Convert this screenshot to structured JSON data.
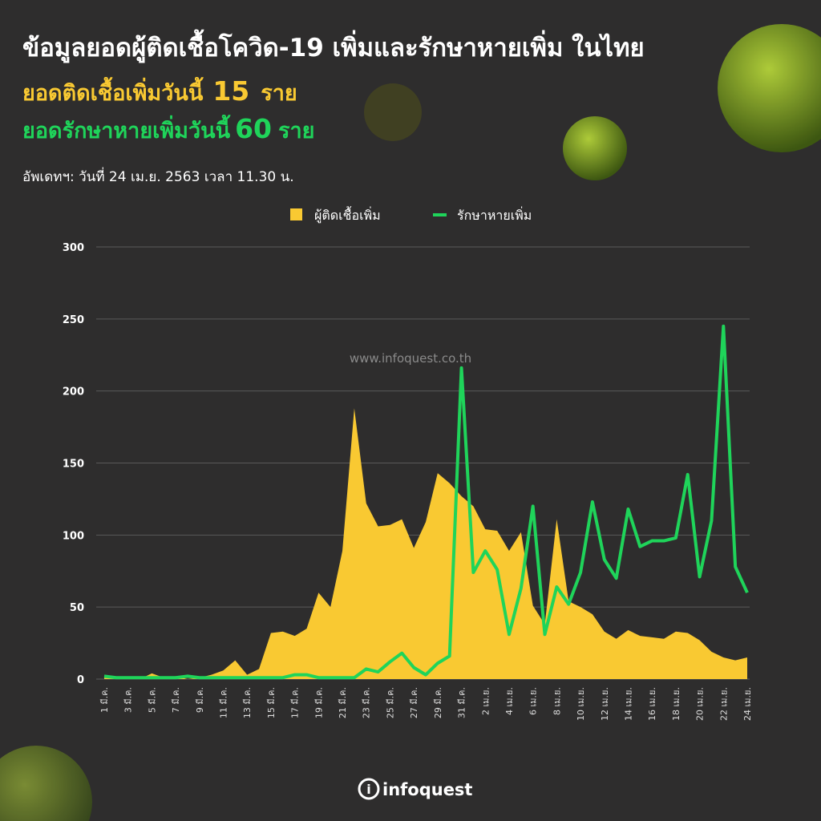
{
  "header": {
    "title": "ข้อมูลยอดผู้ติดเชื้อโควิด-19 เพิ่มและรักษาหายเพิ่ม ในไทย",
    "infected_label": "ยอดติดเชื้อเพิ่มวันนี้",
    "infected_today": 15,
    "infected_unit": "ราย",
    "recovered_label": "ยอดรักษาหายเพิ่มวันนี้",
    "recovered_today": 60,
    "recovered_unit": "ราย",
    "updated": "อัพเดทฯ: วันที่  24 เม.ย. 2563 เวลา 11.30 น.",
    "watermark": "www.infoquest.co.th",
    "logo": "infoquest"
  },
  "chart_data": {
    "type": "combo",
    "ylim": [
      0,
      300
    ],
    "yticks": [
      0,
      50,
      100,
      150,
      200,
      250,
      300
    ],
    "grid": true,
    "legend": "top",
    "categories": [
      "1 มี.ค.",
      null,
      "3 มี.ค.",
      null,
      "5 มี.ค.",
      null,
      "7 มี.ค.",
      null,
      "9 มี.ค.",
      null,
      "11 มี.ค.",
      null,
      "13 มี.ค.",
      null,
      "15 มี.ค.",
      null,
      "17 มี.ค.",
      null,
      "19 มี.ค.",
      null,
      "21 มี.ค.",
      null,
      "23 มี.ค.",
      null,
      "25 มี.ค.",
      null,
      "27 มี.ค.",
      null,
      "29 มี.ค.",
      null,
      "31 มี.ค.",
      null,
      "2 เม.ย.",
      null,
      "4 เม.ย.",
      null,
      "6 เม.ย.",
      null,
      "8 เม.ย.",
      null,
      "10 เม.ย.",
      null,
      "12 เม.ย.",
      null,
      "14 เม.ย.",
      null,
      "16 เม.ย.",
      null,
      "18 เม.ย.",
      null,
      "20 เม.ย.",
      null,
      "22 เม.ย.",
      null,
      "24 เม.ย."
    ],
    "series": [
      {
        "name": "ผู้ติดเชื้อเพิ่ม",
        "type": "area",
        "color": "#f9c932",
        "values": [
          1,
          1,
          1,
          0,
          4,
          1,
          2,
          0,
          1,
          3,
          6,
          13,
          3,
          7,
          32,
          33,
          30,
          35,
          60,
          50,
          89,
          188,
          122,
          106,
          107,
          111,
          91,
          109,
          143,
          136,
          127,
          120,
          104,
          103,
          89,
          102,
          51,
          38,
          111,
          54,
          50,
          45,
          33,
          28,
          34,
          30,
          29,
          28,
          33,
          32,
          27,
          19,
          15,
          13,
          15
        ]
      },
      {
        "name": "รักษาหายเพิ่ม",
        "type": "line",
        "color": "#1fd45a",
        "values": [
          2,
          1,
          1,
          1,
          1,
          1,
          1,
          2,
          1,
          1,
          1,
          1,
          1,
          1,
          1,
          1,
          3,
          3,
          1,
          1,
          1,
          1,
          7,
          5,
          12,
          18,
          8,
          3,
          11,
          16,
          216,
          74,
          89,
          76,
          31,
          63,
          120,
          31,
          64,
          52,
          74,
          123,
          83,
          70,
          118,
          92,
          96,
          96,
          98,
          142,
          71,
          110,
          245,
          78,
          60
        ]
      }
    ]
  }
}
